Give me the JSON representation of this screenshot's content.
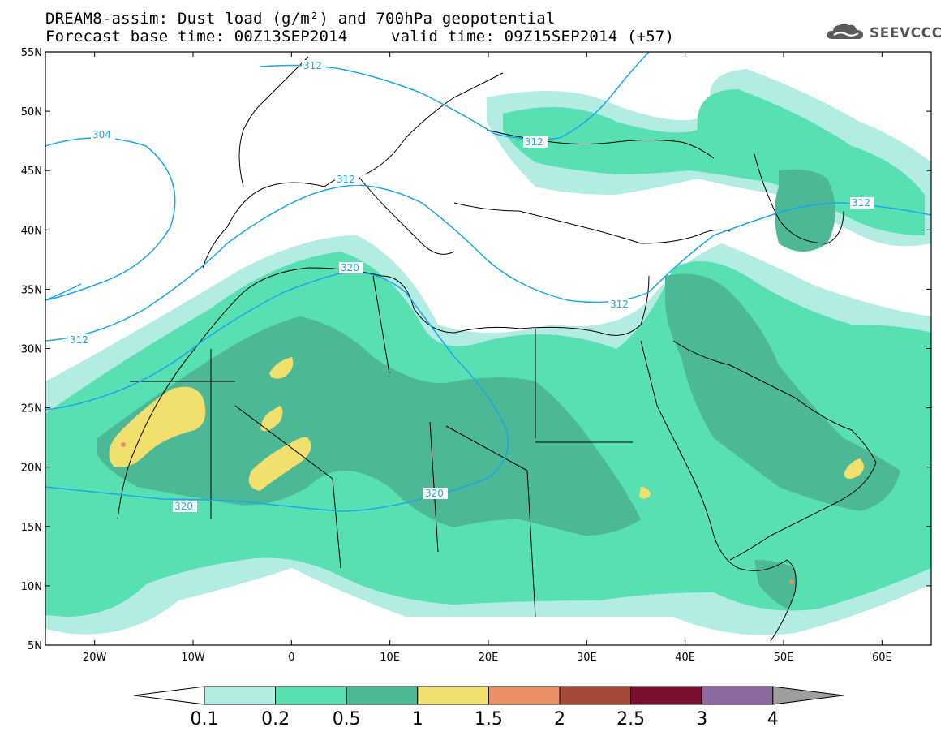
{
  "header": {
    "title": "DREAM8-assim: Dust load (g/m²) and 700hPa geopotential",
    "base_time": "Forecast base time: 00Z13SEP2014",
    "valid_time": "valid time: 09Z15SEP2014 (+57)"
  },
  "logo": {
    "text": "SEEVCCC",
    "icon": "cloud-icon"
  },
  "map": {
    "region": {
      "lon_min": -25,
      "lon_max": 65,
      "lat_min": 5,
      "lat_max": 55
    },
    "lat_labels": [
      "55N",
      "50N",
      "45N",
      "40N",
      "35N",
      "30N",
      "25N",
      "20N",
      "15N",
      "10N",
      "5N"
    ],
    "lon_labels": [
      "20W",
      "10W",
      "0",
      "10E",
      "20E",
      "30E",
      "40E",
      "50E",
      "60E"
    ],
    "colors": {
      "c01": "#b2ece3",
      "c02": "#58e0b3",
      "c05": "#4db896",
      "c1": "#f2e06e",
      "c15": "#ea8f66",
      "c2": "#a54a3a",
      "c25": "#7a0f2d",
      "c3": "#8a6aa0",
      "c4": "#9e9e9e",
      "contour": "#1aa7e8",
      "coast": "#000000"
    }
  },
  "contours": [
    {
      "value": "304",
      "label": "304"
    },
    {
      "value": "312",
      "label": "312"
    },
    {
      "value": "320",
      "label": "320"
    }
  ],
  "colorbar": {
    "ticks": [
      "0.1",
      "0.2",
      "0.5",
      "1",
      "1.5",
      "2",
      "2.5",
      "3",
      "4"
    ],
    "colors": [
      "#ffffff",
      "#b2ece3",
      "#58e0b3",
      "#4db896",
      "#f2e06e",
      "#ea8f66",
      "#a54a3a",
      "#7a0f2d",
      "#8a6aa0",
      "#9e9e9e"
    ]
  }
}
